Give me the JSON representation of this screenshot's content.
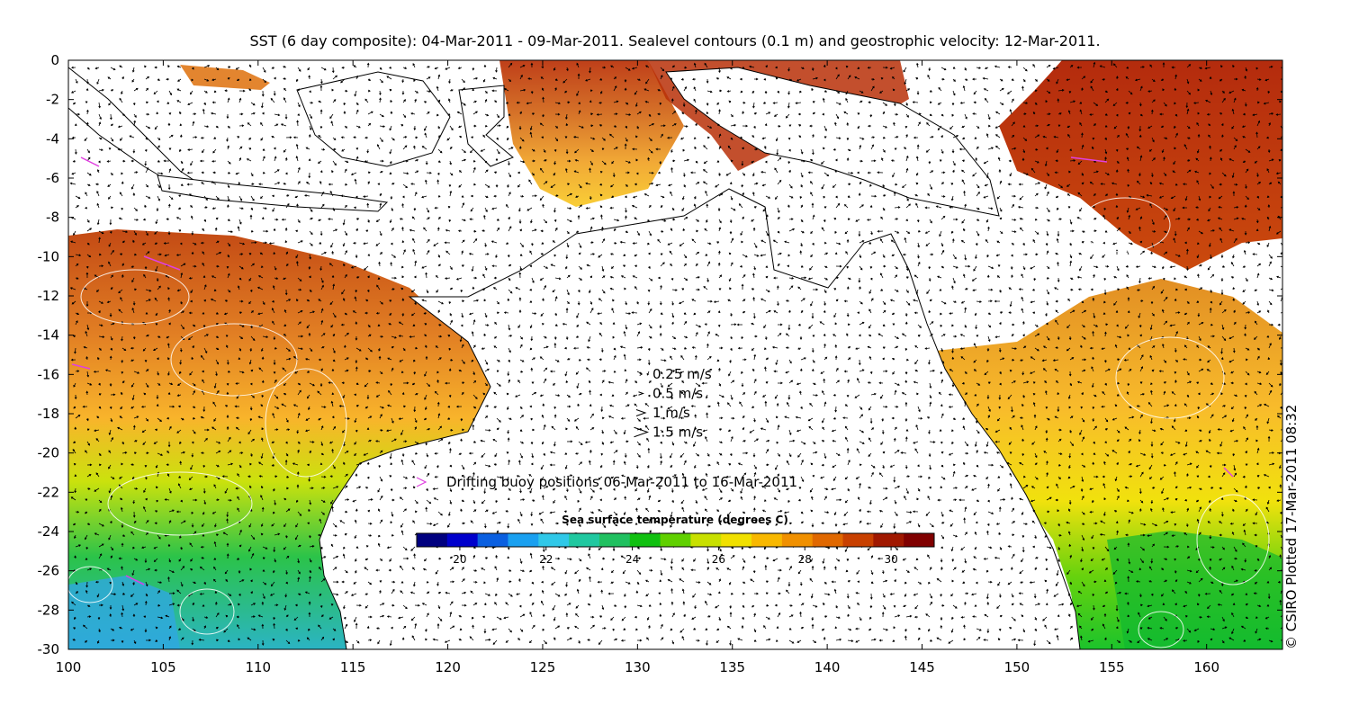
{
  "title": "SST (6 day composite): 04-Mar-2011 - 09-Mar-2011. Sealevel contours (0.1 m) and geostrophic velocity: 12-Mar-2011.",
  "credit": "© CSIRO Plotted 17-Mar-2011 08:32",
  "velocity_legend": {
    "items": [
      {
        "label": "0.25 m/s",
        "speed": 0.25
      },
      {
        "label": "0.5 m/s",
        "speed": 0.5
      },
      {
        "label": "1 m/s",
        "speed": 1
      },
      {
        "label": "1.5 m/s",
        "speed": 1.5
      }
    ]
  },
  "buoy_legend": {
    "label": "Drifting buoy positions 06-Mar-2011 to 16-Mar-2011",
    "color": "#e040e0"
  },
  "colorbar": {
    "title": "Sea surface temperature (degrees C)",
    "min": 19,
    "max": 31,
    "ticks": [
      "20",
      "22",
      "24",
      "26",
      "28",
      "30"
    ],
    "colors": [
      "#00007f",
      "#0000cc",
      "#0a5fe0",
      "#1aa0f0",
      "#30c8e8",
      "#20c8a0",
      "#20c060",
      "#10c010",
      "#60d000",
      "#c8e000",
      "#f0e000",
      "#f8b800",
      "#f09000",
      "#e06800",
      "#c84000",
      "#a01800",
      "#800000"
    ]
  },
  "axes": {
    "xlim": [
      100,
      164
    ],
    "ylim": [
      -30,
      0
    ],
    "xticks": [
      "100",
      "105",
      "110",
      "115",
      "120",
      "125",
      "130",
      "135",
      "140",
      "145",
      "150",
      "155",
      "160"
    ],
    "yticks": [
      "0",
      "-2",
      "-4",
      "-6",
      "-8",
      "-10",
      "-12",
      "-14",
      "-16",
      "-18",
      "-20",
      "-22",
      "-24",
      "-26",
      "-28",
      "-30"
    ]
  }
}
